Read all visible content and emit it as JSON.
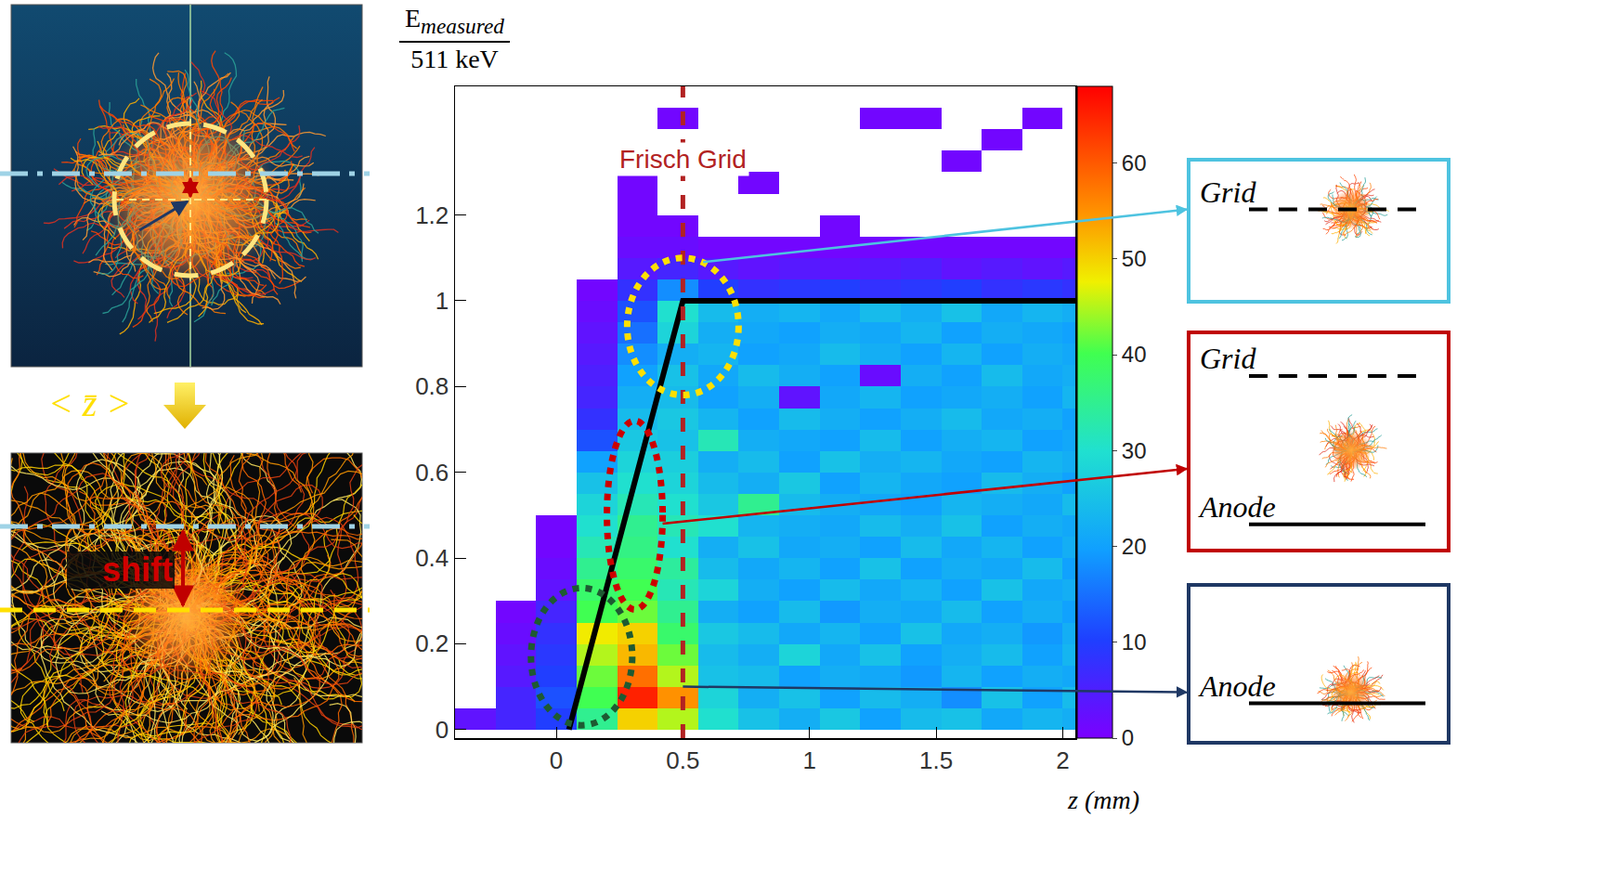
{
  "chart_data": {
    "type": "heatmap",
    "x_label": "z (mm)",
    "y_label": {
      "numerator": "E",
      "numerator_sub": "measured",
      "denominator": "511 keV"
    },
    "x_bins": [
      -0.4,
      -0.24,
      -0.08,
      0.08,
      0.24,
      0.4,
      0.56,
      0.72,
      0.88,
      1.04,
      1.2,
      1.36,
      1.52,
      1.68,
      1.84,
      2.0,
      2.16
    ],
    "y_bins": [
      0,
      0.05,
      0.1,
      0.15,
      0.2,
      0.25,
      0.3,
      0.35,
      0.4,
      0.45,
      0.5,
      0.55,
      0.6,
      0.65,
      0.7,
      0.75,
      0.8,
      0.85,
      0.9,
      0.95,
      1,
      1.05,
      1.1,
      1.15,
      1.2,
      1.25,
      1.3,
      1.35,
      1.4,
      1.45
    ],
    "counts": [
      [
        3,
        6,
        10,
        35,
        50,
        45,
        30,
        25,
        22,
        26,
        20,
        24,
        25,
        21,
        23,
        22
      ],
      [
        null,
        6,
        12,
        40,
        65,
        55,
        28,
        22,
        25,
        20,
        24,
        22,
        18,
        25,
        20,
        24
      ],
      [
        null,
        4,
        10,
        42,
        58,
        45,
        25,
        24,
        20,
        22,
        21,
        19,
        23,
        20,
        22,
        21
      ],
      [
        null,
        3,
        9,
        45,
        52,
        42,
        24,
        22,
        28,
        21,
        25,
        20,
        22,
        24,
        20,
        23
      ],
      [
        null,
        2,
        8,
        48,
        50,
        38,
        26,
        24,
        21,
        23,
        20,
        25,
        21,
        22,
        19,
        22
      ],
      [
        null,
        1,
        6,
        40,
        42,
        35,
        22,
        20,
        24,
        19,
        22,
        21,
        24,
        20,
        22,
        20
      ],
      [
        null,
        null,
        3,
        38,
        40,
        32,
        28,
        22,
        20,
        24,
        21,
        23,
        20,
        25,
        21,
        22
      ],
      [
        null,
        null,
        2,
        35,
        38,
        34,
        24,
        21,
        23,
        20,
        25,
        20,
        22,
        21,
        24,
        20
      ],
      [
        null,
        null,
        1,
        32,
        36,
        30,
        22,
        25,
        21,
        22,
        20,
        24,
        21,
        23,
        20,
        22
      ],
      [
        null,
        null,
        1,
        30,
        35,
        32,
        30,
        23,
        22,
        21,
        24,
        22,
        25,
        20,
        22,
        21
      ],
      [
        null,
        null,
        null,
        28,
        32,
        30,
        26,
        35,
        24,
        22,
        21,
        20,
        23,
        22,
        21,
        24
      ],
      [
        null,
        null,
        null,
        25,
        30,
        28,
        24,
        22,
        26,
        20,
        23,
        21,
        20,
        24,
        22,
        20
      ],
      [
        null,
        null,
        null,
        20,
        28,
        27,
        22,
        24,
        20,
        25,
        22,
        23,
        21,
        20,
        23,
        22
      ],
      [
        null,
        null,
        null,
        12,
        26,
        25,
        32,
        22,
        21,
        20,
        24,
        20,
        22,
        23,
        20,
        21
      ],
      [
        null,
        null,
        null,
        8,
        24,
        26,
        23,
        20,
        24,
        22,
        20,
        22,
        24,
        21,
        22,
        20
      ],
      [
        null,
        null,
        null,
        6,
        22,
        24,
        20,
        22,
        3,
        21,
        23,
        20,
        21,
        22,
        20,
        23
      ],
      [
        null,
        null,
        null,
        5,
        20,
        25,
        21,
        24,
        22,
        20,
        2,
        22,
        20,
        24,
        21,
        22
      ],
      [
        null,
        null,
        null,
        4,
        18,
        22,
        23,
        20,
        21,
        24,
        22,
        20,
        23,
        20,
        22,
        21
      ],
      [
        null,
        null,
        null,
        3,
        15,
        28,
        22,
        21,
        20,
        22,
        21,
        23,
        20,
        22,
        21,
        20
      ],
      [
        null,
        null,
        null,
        2,
        12,
        30,
        24,
        22,
        23,
        21,
        24,
        22,
        25,
        21,
        23,
        22
      ],
      [
        null,
        null,
        null,
        1,
        8,
        18,
        10,
        8,
        9,
        10,
        8,
        9,
        10,
        8,
        9,
        8
      ],
      [
        null,
        null,
        null,
        null,
        4,
        6,
        4,
        3,
        4,
        3,
        4,
        5,
        3,
        4,
        3,
        4
      ],
      [
        null,
        null,
        null,
        null,
        2,
        2,
        1,
        1,
        1,
        1,
        1,
        1,
        1,
        1,
        1,
        1
      ],
      [
        null,
        null,
        null,
        null,
        1,
        1,
        null,
        null,
        null,
        1,
        null,
        null,
        null,
        null,
        null,
        null
      ],
      [
        null,
        null,
        null,
        null,
        1,
        null,
        null,
        null,
        null,
        null,
        null,
        null,
        null,
        null,
        null,
        null
      ],
      [
        null,
        null,
        null,
        null,
        1,
        null,
        null,
        1,
        null,
        null,
        null,
        null,
        null,
        null,
        null,
        null
      ],
      [
        null,
        null,
        null,
        null,
        null,
        null,
        null,
        null,
        null,
        null,
        null,
        null,
        1,
        null,
        null,
        null
      ],
      [
        null,
        null,
        null,
        null,
        null,
        null,
        null,
        null,
        null,
        null,
        null,
        null,
        null,
        1,
        null,
        null
      ],
      [
        null,
        null,
        null,
        null,
        null,
        1,
        null,
        null,
        null,
        null,
        1,
        1,
        null,
        null,
        1,
        null
      ]
    ],
    "colorbar": {
      "range": [
        0,
        68
      ],
      "ticks": [
        0,
        10,
        20,
        30,
        40,
        50,
        60
      ]
    },
    "series": [
      {
        "type": "line",
        "x": [
          0.05,
          0.5,
          2.05
        ],
        "y": [
          0,
          1,
          1
        ],
        "color": "#000000"
      }
    ],
    "frisch_grid": {
      "x": 0.5,
      "label": "Frisch Grid",
      "label_y": 1.33,
      "color": "#b22222"
    },
    "highlights": [
      {
        "center": [
          0.5,
          0.94
        ],
        "radii": [
          0.22,
          0.16
        ],
        "color": "#ffe000"
      },
      {
        "center": [
          0.31,
          0.5
        ],
        "radii": [
          0.11,
          0.22
        ],
        "color": "#cc0000"
      },
      {
        "center": [
          0.1,
          0.17
        ],
        "radii": [
          0.2,
          0.16
        ],
        "color": "#1e5a32"
      }
    ],
    "xlim": [
      -0.4,
      2.05
    ],
    "ylim": [
      -0.02,
      1.5
    ],
    "xticks": [
      0,
      0.5,
      1,
      1.5,
      2
    ],
    "yticks": [
      0,
      0.2,
      0.4,
      0.6,
      0.8,
      1,
      1.2
    ],
    "grid": false
  },
  "left_panels": {
    "mean_label": "< z̄ >",
    "shift_label": "shift"
  },
  "right_panels": [
    {
      "electrodes": [
        {
          "label": "Grid",
          "kind": "grid"
        }
      ],
      "from": [
        0.58,
        1.09
      ],
      "color": "#4ec3e0"
    },
    {
      "electrodes": [
        {
          "label": "Grid",
          "kind": "grid"
        },
        {
          "label": "Anode",
          "kind": "anode"
        }
      ],
      "from": [
        0.42,
        0.48
      ],
      "color": "#c00000"
    },
    {
      "electrodes": [
        {
          "label": "Anode",
          "kind": "anode"
        }
      ],
      "from": [
        0.5,
        0.1
      ],
      "color": "#1f3864"
    }
  ]
}
